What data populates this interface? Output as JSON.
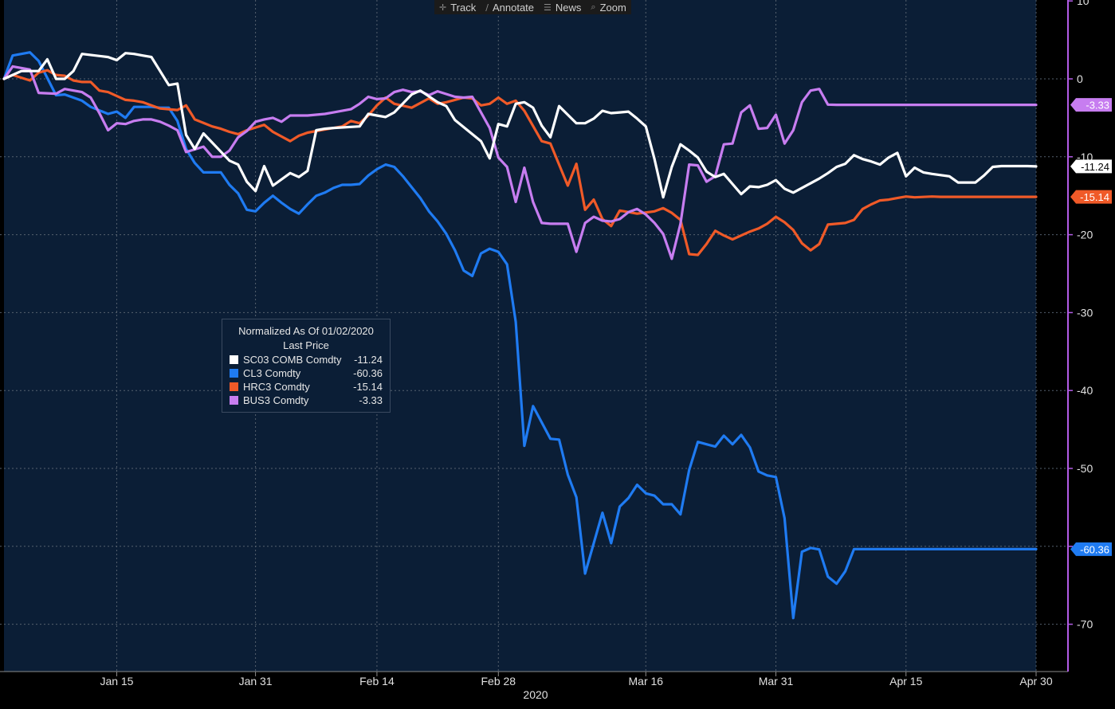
{
  "toolbar": [
    {
      "label": "Track",
      "icon": "crosshair-icon",
      "glyph": "✛"
    },
    {
      "label": "Annotate",
      "icon": "pencil-icon",
      "glyph": "∕"
    },
    {
      "label": "News",
      "icon": "news-icon",
      "glyph": "☰"
    },
    {
      "label": "Zoom",
      "icon": "magnifier-icon",
      "glyph": "⌕"
    }
  ],
  "legend": {
    "title": "Normalized As Of 01/02/2020",
    "subtitle": "Last Price",
    "items": [
      {
        "name": "SC03 COMB Comdty",
        "value": "-11.24",
        "color": "#ffffff"
      },
      {
        "name": "CL3 Comdty",
        "value": "-60.36",
        "color": "#1f7bf2"
      },
      {
        "name": "HRC3 Comdty",
        "value": "-15.14",
        "color": "#f05a28"
      },
      {
        "name": "BUS3 Comdty",
        "value": "-3.33",
        "color": "#c77df0"
      }
    ]
  },
  "chart_data": {
    "type": "line",
    "x_axis": {
      "ticks": [
        {
          "label": "Jan 15",
          "day": 14
        },
        {
          "label": "Jan 31",
          "day": 30
        },
        {
          "label": "Feb 14",
          "day": 44
        },
        {
          "label": "Feb 28",
          "day": 58
        },
        {
          "label": "Mar 16",
          "day": 75
        },
        {
          "label": "Mar 31",
          "day": 90
        },
        {
          "label": "Apr 15",
          "day": 105
        },
        {
          "label": "Apr 30",
          "day": 120
        }
      ],
      "year_label": "2020",
      "start": "2020-01-02",
      "end": "2020-04-30",
      "range_days": [
        1,
        120
      ]
    },
    "y_axis": {
      "position": "right",
      "ylim": [
        -75,
        10
      ],
      "ticks": [
        10,
        0,
        -10,
        -20,
        -30,
        -40,
        -50,
        -60,
        -70
      ],
      "color": "#b25ce6"
    },
    "grid": true,
    "background": "#0b1e36",
    "series": [
      {
        "name": "SC03 COMB Comdty",
        "color": "#ffffff",
        "last": "-11.24",
        "x": [
          1,
          3,
          5,
          6,
          7,
          8,
          9,
          10,
          13,
          14,
          15,
          16,
          17,
          18,
          20,
          21,
          22,
          23,
          24,
          27,
          28,
          29,
          30,
          31,
          32,
          34,
          35,
          36,
          37,
          38,
          39,
          42,
          43,
          44,
          45,
          46,
          48,
          49,
          51,
          52,
          53,
          56,
          57,
          58,
          59,
          60,
          61,
          62,
          63,
          64,
          65,
          67,
          68,
          69,
          70,
          71,
          72,
          73,
          74,
          75,
          76,
          77,
          78,
          79,
          80,
          81,
          82,
          83,
          84,
          85,
          86,
          87,
          88,
          89,
          90,
          91,
          92,
          95,
          96,
          97,
          98,
          99,
          100,
          101,
          102,
          103,
          104,
          105,
          106,
          107,
          108,
          110,
          111,
          112,
          113,
          114,
          115,
          116,
          117,
          118,
          119,
          120
        ],
        "y": [
          0.0,
          1.0,
          1.0,
          2.5,
          0.0,
          0.0,
          1.0,
          3.2,
          2.8,
          2.4,
          3.3,
          3.2,
          3.0,
          2.8,
          -0.8,
          -0.6,
          -7.2,
          -9.0,
          -7.0,
          -10.5,
          -11.0,
          -13.2,
          -14.4,
          -11.2,
          -13.7,
          -12.1,
          -12.6,
          -11.8,
          -6.6,
          -6.4,
          -6.3,
          -6.1,
          -4.5,
          -4.7,
          -4.9,
          -4.3,
          -2.0,
          -1.5,
          -3.0,
          -3.5,
          -5.3,
          -8.0,
          -10.2,
          -5.8,
          -6.1,
          -3.2,
          -3.0,
          -3.7,
          -6.0,
          -7.5,
          -3.5,
          -5.7,
          -5.7,
          -5.1,
          -4.1,
          -4.4,
          -4.3,
          -4.2,
          -5.1,
          -6.1,
          -10.3,
          -15.2,
          -11.3,
          -8.4,
          -9.2,
          -10.1,
          -11.9,
          -12.6,
          -12.2,
          -13.5,
          -14.8,
          -13.8,
          -13.9,
          -13.6,
          -13.0,
          -14.1,
          -14.6,
          -12.8,
          -12.1,
          -11.3,
          -10.9,
          -9.8,
          -10.3,
          -10.6,
          -11.0,
          -10.1,
          -9.5,
          -12.5,
          -11.4,
          -12.0,
          -12.2,
          -12.5,
          -13.3,
          -13.3,
          -13.3,
          -12.4,
          -11.3,
          -11.2,
          -11.2,
          -11.2,
          -11.2,
          -11.24
        ]
      },
      {
        "name": "CL3 Comdty",
        "color": "#1f7bf2",
        "last": "-60.36",
        "x": [
          1,
          2,
          4,
          5,
          7,
          8,
          10,
          11,
          13,
          14,
          15,
          16,
          18,
          19,
          20,
          21,
          22,
          23,
          24,
          26,
          27,
          28,
          29,
          30,
          31,
          32,
          33,
          34,
          35,
          36,
          37,
          38,
          39,
          40,
          41,
          42,
          43,
          44,
          45,
          46,
          47,
          49,
          50,
          51,
          52,
          53,
          54,
          55,
          56,
          57,
          58,
          59,
          60,
          61,
          62,
          63,
          64,
          65,
          66,
          67,
          68,
          70,
          71,
          72,
          73,
          74,
          75,
          76,
          77,
          78,
          79,
          80,
          81,
          82,
          83,
          84,
          85,
          86,
          87,
          88,
          89,
          90,
          91,
          92,
          93,
          94,
          95,
          96,
          97,
          98,
          99,
          100,
          101,
          102,
          103,
          104,
          105,
          106,
          107,
          108,
          109,
          110,
          111,
          112,
          113,
          114,
          115,
          116,
          117,
          118,
          119,
          120
        ],
        "y": [
          0.0,
          3.0,
          3.4,
          2.3,
          -2.1,
          -2.0,
          -2.8,
          -3.6,
          -4.5,
          -4.2,
          -5.0,
          -3.6,
          -3.6,
          -3.7,
          -3.7,
          -5.4,
          -9.0,
          -10.8,
          -12.0,
          -12.0,
          -13.6,
          -14.7,
          -16.8,
          -17.0,
          -15.9,
          -15.0,
          -15.9,
          -16.7,
          -17.3,
          -16.1,
          -15.0,
          -14.6,
          -14.0,
          -13.6,
          -13.6,
          -13.5,
          -12.4,
          -11.6,
          -11.0,
          -11.3,
          -12.5,
          -15.3,
          -17.0,
          -18.3,
          -19.9,
          -22.0,
          -24.6,
          -25.3,
          -22.4,
          -21.8,
          -22.2,
          -23.8,
          -31.2,
          -47.1,
          -42.0,
          -44.1,
          -46.2,
          -46.3,
          -50.8,
          -53.7,
          -63.5,
          -55.7,
          -59.6,
          -54.9,
          -53.8,
          -52.1,
          -53.2,
          -53.5,
          -54.6,
          -54.6,
          -55.9,
          -50.2,
          -46.6,
          -46.9,
          -47.2,
          -45.8,
          -46.9,
          -45.7,
          -47.3,
          -50.4,
          -50.9,
          -51.1,
          -56.4,
          -69.2,
          -60.7,
          -60.2,
          -60.4,
          -63.9,
          -64.8,
          -63.2,
          -60.36,
          -60.36,
          -60.36,
          -60.36,
          -60.36,
          -60.36,
          -60.36,
          -60.36,
          -60.36,
          -60.36,
          -60.36,
          -60.36,
          -60.36,
          -60.36,
          -60.36,
          -60.36,
          -60.36,
          -60.36,
          -60.36,
          -60.36,
          -60.36,
          -60.36
        ]
      },
      {
        "name": "HRC3 Comdty",
        "color": "#f05a28",
        "last": "-15.14",
        "x": [
          1,
          2,
          4,
          5,
          6,
          7,
          8,
          9,
          10,
          11,
          12,
          13,
          15,
          16,
          17,
          19,
          21,
          22,
          23,
          25,
          26,
          27,
          28,
          29,
          31,
          32,
          34,
          35,
          36,
          38,
          40,
          41,
          42,
          43,
          44,
          45,
          46,
          48,
          50,
          51,
          52,
          54,
          55,
          56,
          57,
          58,
          59,
          60,
          61,
          63,
          64,
          66,
          67,
          68,
          69,
          70,
          71,
          72,
          73,
          74,
          76,
          77,
          78,
          79,
          80,
          81,
          82,
          83,
          84,
          85,
          86,
          87,
          88,
          89,
          90,
          91,
          92,
          93,
          94,
          95,
          96,
          98,
          99,
          100,
          101,
          102,
          103,
          104,
          105,
          106,
          108,
          109,
          110,
          111,
          112,
          113,
          114,
          115,
          116,
          117,
          118,
          119,
          120
        ],
        "y": [
          0.0,
          0.5,
          -0.2,
          0.8,
          1.1,
          0.5,
          0.4,
          -0.2,
          -0.4,
          -0.4,
          -1.5,
          -1.7,
          -2.7,
          -2.8,
          -3.0,
          -3.8,
          -4.0,
          -3.4,
          -5.2,
          -6.1,
          -6.4,
          -6.8,
          -7.1,
          -6.6,
          -5.9,
          -6.8,
          -8.0,
          -7.3,
          -6.9,
          -6.5,
          -6.1,
          -5.4,
          -5.7,
          -4.7,
          -3.4,
          -2.4,
          -3.2,
          -3.7,
          -2.5,
          -3.2,
          -3.0,
          -2.4,
          -2.5,
          -3.4,
          -3.2,
          -2.4,
          -3.2,
          -2.8,
          -4.1,
          -8.0,
          -8.3,
          -13.7,
          -10.9,
          -16.8,
          -15.5,
          -18.0,
          -18.9,
          -16.9,
          -17.1,
          -17.3,
          -17.0,
          -16.6,
          -17.2,
          -18.1,
          -22.5,
          -22.6,
          -21.2,
          -19.5,
          -20.1,
          -20.6,
          -20.1,
          -19.6,
          -19.2,
          -18.6,
          -17.7,
          -18.4,
          -19.4,
          -21.1,
          -22.0,
          -21.2,
          -18.7,
          -18.5,
          -18.1,
          -16.7,
          -16.1,
          -15.6,
          -15.5,
          -15.3,
          -15.1,
          -15.2,
          -15.1,
          -15.14,
          -15.14,
          -15.14,
          -15.14,
          -15.14,
          -15.14,
          -15.14,
          -15.14,
          -15.14,
          -15.14,
          -15.14,
          -15.14
        ],
        "note": ""
      },
      {
        "name": "BUS3 Comdty",
        "color": "#c77df0",
        "last": "-3.33",
        "x": [
          1,
          2,
          4,
          5,
          7,
          8,
          10,
          11,
          12,
          13,
          14,
          15,
          16,
          17,
          18,
          19,
          20,
          21,
          22,
          24,
          25,
          26,
          27,
          28,
          29,
          30,
          31,
          32,
          33,
          34,
          35,
          36,
          37,
          38,
          39,
          41,
          42,
          43,
          44,
          45,
          46,
          47,
          48,
          49,
          50,
          51,
          53,
          54,
          55,
          57,
          58,
          59,
          60,
          61,
          62,
          63,
          64,
          66,
          67,
          68,
          69,
          70,
          71,
          72,
          73,
          74,
          75,
          76,
          77,
          78,
          79,
          80,
          81,
          82,
          83,
          84,
          85,
          86,
          87,
          88,
          89,
          90,
          91,
          92,
          93,
          94,
          95,
          96,
          97,
          98,
          99,
          100,
          101,
          102,
          103,
          104,
          105,
          106,
          107,
          108,
          109,
          110,
          111,
          112,
          113,
          114,
          115,
          116,
          117,
          118,
          119,
          120
        ],
        "y": [
          0.0,
          1.6,
          1.2,
          -1.8,
          -1.9,
          -1.3,
          -1.7,
          -2.4,
          -4.4,
          -6.6,
          -5.7,
          -5.8,
          -5.4,
          -5.2,
          -5.2,
          -5.5,
          -6.0,
          -6.6,
          -9.4,
          -8.7,
          -10.0,
          -10.0,
          -9.2,
          -7.5,
          -6.7,
          -5.5,
          -5.2,
          -5.0,
          -5.5,
          -4.7,
          -4.7,
          -4.7,
          -4.6,
          -4.5,
          -4.3,
          -3.9,
          -3.2,
          -2.3,
          -2.6,
          -2.5,
          -1.7,
          -1.4,
          -1.7,
          -1.6,
          -2.1,
          -1.6,
          -2.3,
          -2.4,
          -2.3,
          -6.3,
          -10.1,
          -11.3,
          -15.8,
          -11.4,
          -15.8,
          -18.5,
          -18.6,
          -18.6,
          -22.2,
          -18.5,
          -17.7,
          -18.2,
          -18.3,
          -18.0,
          -17.1,
          -16.7,
          -17.4,
          -18.5,
          -19.9,
          -23.1,
          -18.6,
          -11.0,
          -11.1,
          -13.2,
          -12.5,
          -8.4,
          -8.3,
          -4.3,
          -3.4,
          -6.4,
          -6.3,
          -4.6,
          -8.3,
          -6.6,
          -3.0,
          -1.5,
          -1.3,
          -3.3,
          -3.33,
          -3.33,
          -3.33,
          -3.33,
          -3.33,
          -3.33,
          -3.33,
          -3.33,
          -3.33,
          -3.33,
          -3.33,
          -3.33,
          -3.33,
          -3.33,
          -3.33,
          -3.33,
          -3.33,
          -3.33,
          -3.33,
          -3.33,
          -3.33,
          -3.33,
          -3.33,
          -3.33
        ]
      }
    ]
  }
}
